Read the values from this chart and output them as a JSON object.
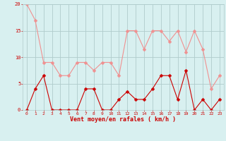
{
  "x": [
    0,
    1,
    2,
    3,
    4,
    5,
    6,
    7,
    8,
    9,
    10,
    11,
    12,
    13,
    14,
    15,
    16,
    17,
    18,
    19,
    20,
    21,
    22,
    23
  ],
  "rafales": [
    20,
    17,
    9,
    9,
    6.5,
    6.5,
    9,
    9,
    7.5,
    9,
    9,
    6.5,
    15,
    15,
    11.5,
    15,
    15,
    13,
    15,
    11,
    15,
    11.5,
    4,
    6.5
  ],
  "vent_moyen": [
    0,
    4,
    6.5,
    0,
    0,
    0,
    0,
    4,
    4,
    0,
    0,
    2,
    3.5,
    2,
    2,
    4,
    6.5,
    6.5,
    2,
    7.5,
    0,
    2,
    0,
    2
  ],
  "bg_color": "#d8f0f0",
  "grid_color": "#b0cccc",
  "line_rafales_color": "#f09090",
  "line_vent_color": "#cc0000",
  "ylabel_ticks": [
    0,
    5,
    10,
    15,
    20
  ],
  "ylim": [
    0,
    20
  ],
  "xlim": [
    -0.5,
    23.5
  ],
  "xlabel": "Vent moyen/en rafales ( km/h )",
  "xlabel_color": "#cc0000",
  "tick_color": "#cc0000",
  "marker_size": 2.5,
  "linewidth": 0.8
}
